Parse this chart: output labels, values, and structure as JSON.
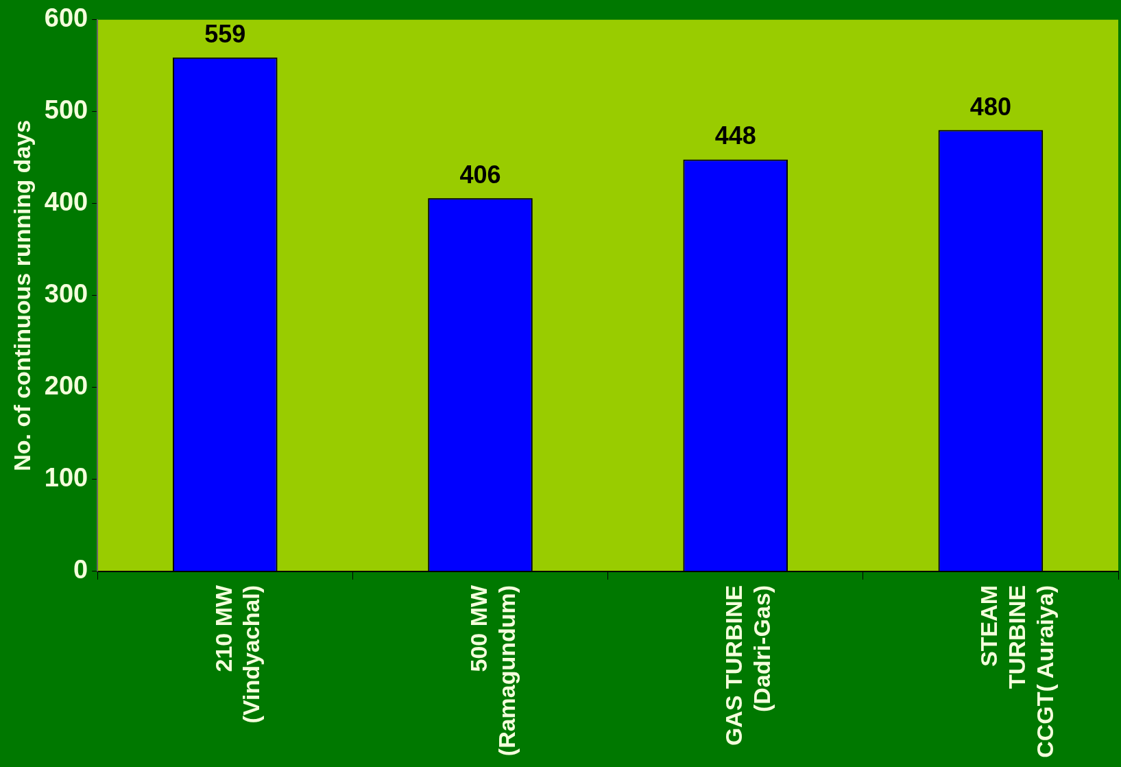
{
  "chart_data": {
    "type": "bar",
    "ylabel": "No. of continuous running days",
    "categories": [
      "210 MW\n(Vindyachal)",
      "500 MW\n(Ramagundum)",
      "GAS TURBINE\n(Dadri-Gas)",
      "STEAM\nTURBINE\nCCGT( Auraiya)"
    ],
    "values": [
      559,
      406,
      448,
      480
    ],
    "color": "#0000ff",
    "ylim": [
      0,
      600
    ],
    "yticks": [
      0,
      100,
      200,
      300,
      400,
      500,
      600
    ],
    "grid": false,
    "legend": false,
    "data_labels": true
  }
}
